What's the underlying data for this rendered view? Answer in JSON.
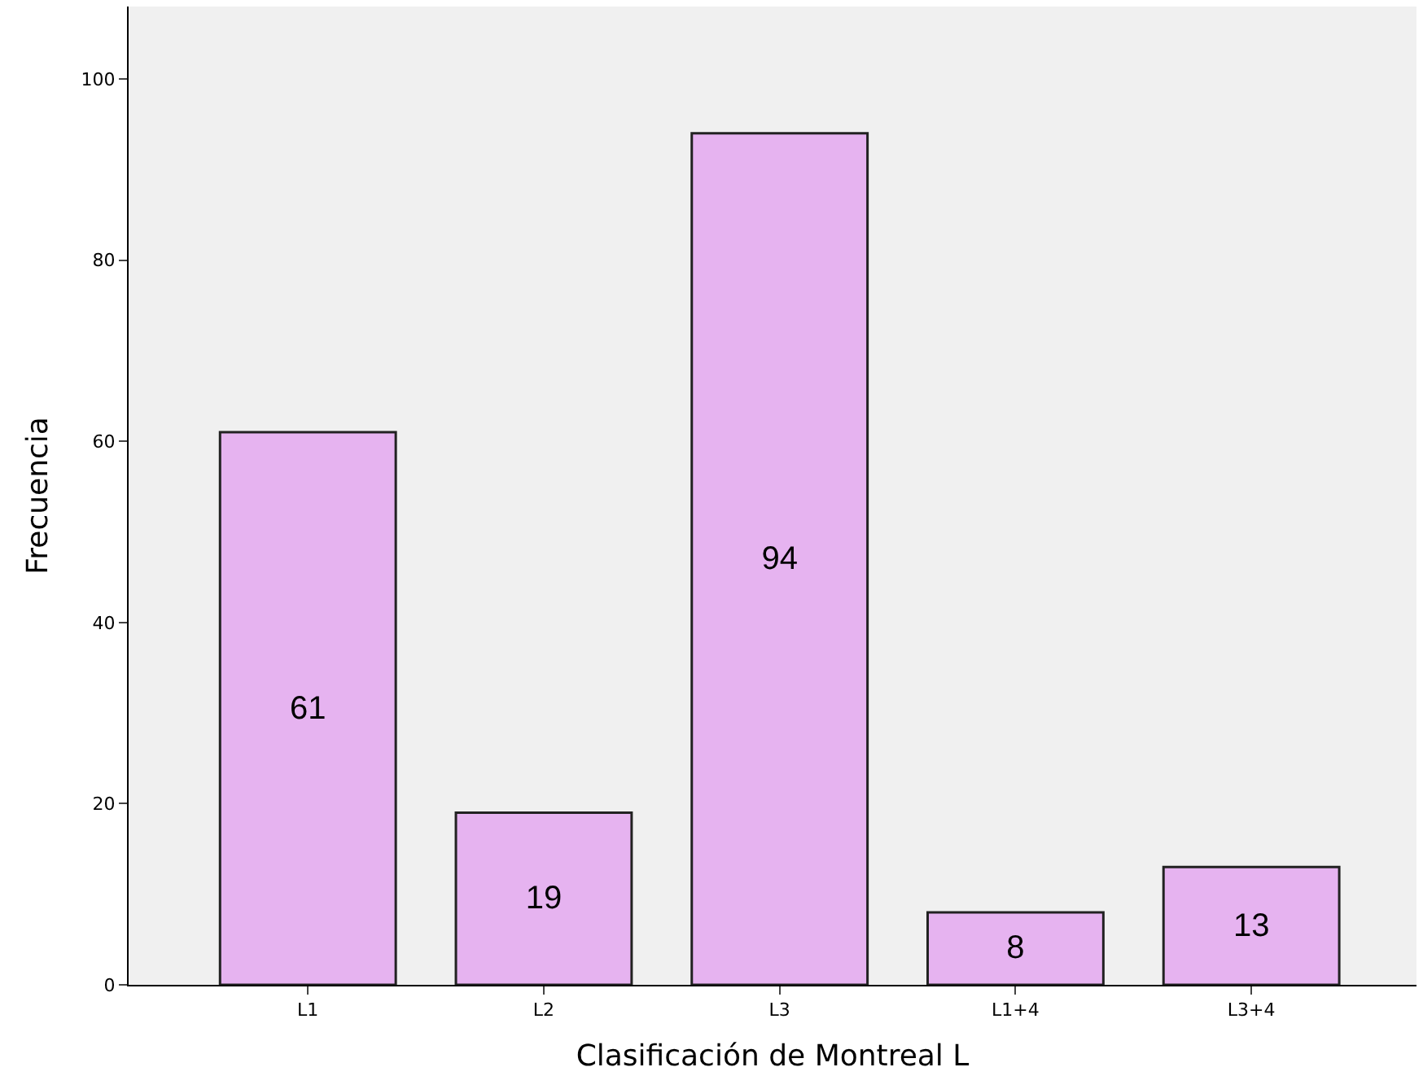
{
  "chart_data": {
    "type": "bar",
    "xlabel": "Clasificación de Montreal L",
    "ylabel": "Frecuencia",
    "categories": [
      "L1",
      "L2",
      "L3",
      "L1+4",
      "L3+4"
    ],
    "values": [
      61,
      19,
      94,
      8,
      13
    ],
    "color": "#e6b3f0",
    "ylim": [
      0,
      108
    ],
    "yticks": [
      0,
      20,
      40,
      60,
      80,
      100
    ],
    "data_labels": true,
    "grid": false
  }
}
